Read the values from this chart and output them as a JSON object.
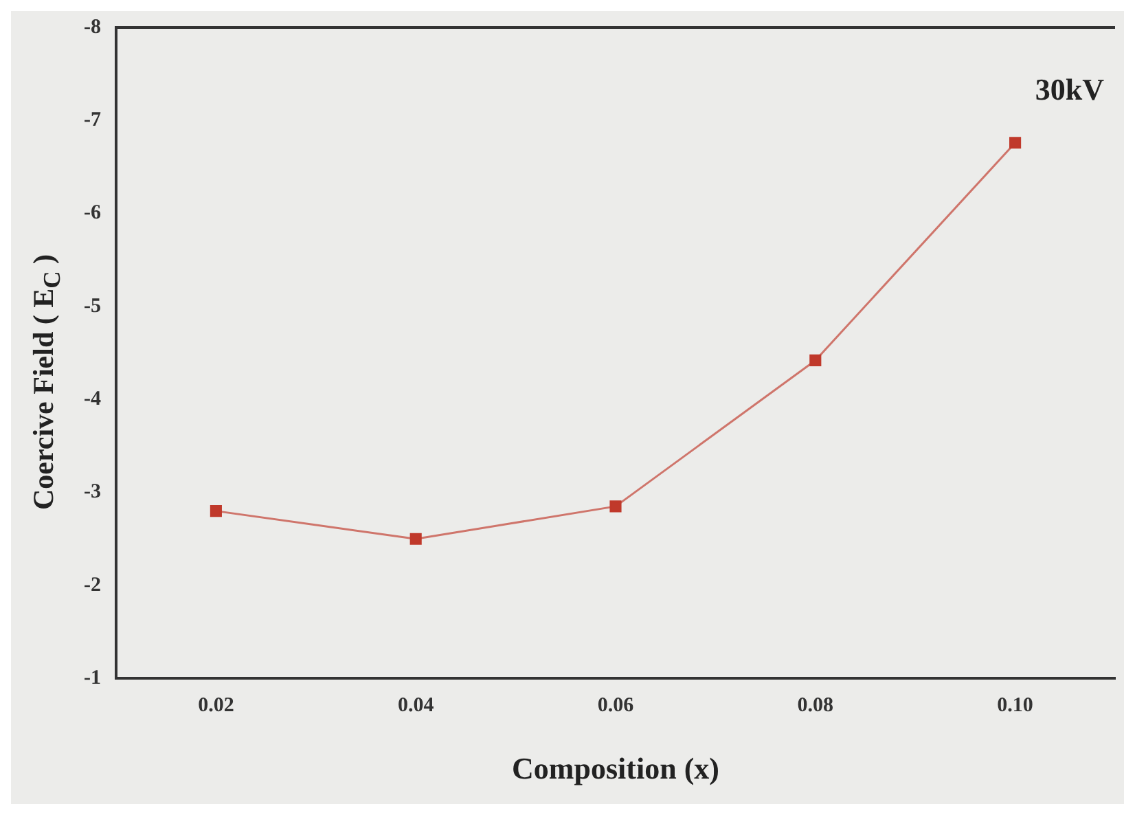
{
  "chart_data": {
    "type": "line",
    "xlabel": "Composition (x)",
    "ylabel": "Coercive Field ( E$_{C}$ )",
    "annotations": [
      "30kV"
    ],
    "x": [
      0.02,
      0.04,
      0.06,
      0.08,
      0.1
    ],
    "series": [
      {
        "color": "#c0392b",
        "values": [
          -2.8,
          -2.5,
          -2.85,
          -4.42,
          -6.76
        ]
      }
    ],
    "xlim": [
      0.01,
      0.11
    ],
    "xticks": [
      0.02,
      0.04,
      0.06,
      0.08,
      {
        "value": 0.1,
        "label": "0.10"
      }
    ],
    "ylim": [
      -1,
      -8
    ],
    "yticks": [
      -1,
      -2,
      -3,
      -4,
      -5,
      -6,
      -7,
      -8
    ],
    "grid": false,
    "legend": false,
    "marker": "square",
    "line_style": "solid"
  }
}
